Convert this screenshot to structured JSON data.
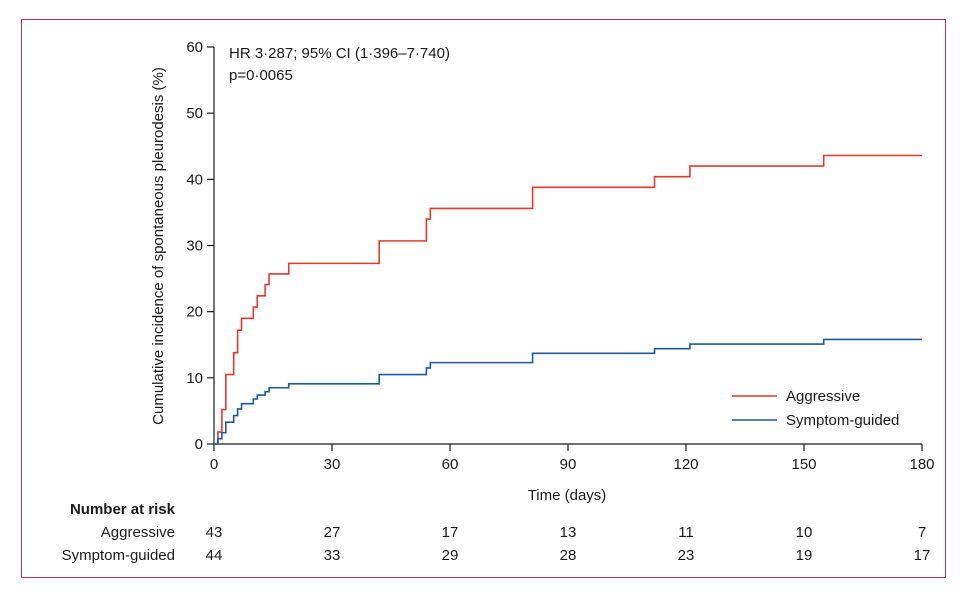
{
  "chart_data": {
    "type": "line",
    "subtype": "kaplan-meier-step",
    "ylabel": "Cumulative incidence of spontaneous pleurodesis (%)",
    "xlabel": "Time (days)",
    "xlim": [
      0,
      180
    ],
    "ylim": [
      0,
      60
    ],
    "xticks": [
      0,
      30,
      60,
      90,
      120,
      150,
      180
    ],
    "yticks": [
      0,
      10,
      20,
      30,
      40,
      50,
      60
    ],
    "grid": false,
    "legend_position": "bottom-right",
    "annotations": [
      "HR 3·287; 95% CI (1·396–7·740)",
      "p=0·0065"
    ],
    "series": [
      {
        "name": "Aggressive",
        "color": "#e03a2f",
        "steps": [
          [
            0,
            0
          ],
          [
            1,
            0
          ],
          [
            1,
            1.8
          ],
          [
            2,
            1.8
          ],
          [
            2,
            5.2
          ],
          [
            3,
            5.2
          ],
          [
            3,
            10.5
          ],
          [
            5,
            10.5
          ],
          [
            5,
            13.8
          ],
          [
            6,
            13.8
          ],
          [
            6,
            17.2
          ],
          [
            7,
            17.2
          ],
          [
            7,
            19.0
          ],
          [
            10,
            19.0
          ],
          [
            10,
            20.7
          ],
          [
            11,
            20.7
          ],
          [
            11,
            22.4
          ],
          [
            13,
            22.4
          ],
          [
            13,
            24.1
          ],
          [
            14,
            24.1
          ],
          [
            14,
            25.7
          ],
          [
            19,
            25.7
          ],
          [
            19,
            27.3
          ],
          [
            42,
            27.3
          ],
          [
            42,
            30.7
          ],
          [
            54,
            30.7
          ],
          [
            54,
            34.0
          ],
          [
            55,
            34.0
          ],
          [
            55,
            35.6
          ],
          [
            81,
            35.6
          ],
          [
            81,
            38.8
          ],
          [
            112,
            38.8
          ],
          [
            112,
            40.4
          ],
          [
            121,
            40.4
          ],
          [
            121,
            42.0
          ],
          [
            155,
            42.0
          ],
          [
            155,
            43.6
          ],
          [
            180,
            43.6
          ]
        ]
      },
      {
        "name": "Symptom-guided",
        "color": "#1c5a9c",
        "steps": [
          [
            0,
            0
          ],
          [
            1,
            0
          ],
          [
            1,
            0.8
          ],
          [
            2,
            0.8
          ],
          [
            2,
            1.7
          ],
          [
            3,
            1.7
          ],
          [
            3,
            3.3
          ],
          [
            5,
            3.3
          ],
          [
            5,
            4.3
          ],
          [
            6,
            4.3
          ],
          [
            6,
            5.3
          ],
          [
            7,
            5.3
          ],
          [
            7,
            6.1
          ],
          [
            10,
            6.1
          ],
          [
            10,
            6.8
          ],
          [
            11,
            6.8
          ],
          [
            11,
            7.4
          ],
          [
            13,
            7.4
          ],
          [
            13,
            7.9
          ],
          [
            14,
            7.9
          ],
          [
            14,
            8.5
          ],
          [
            19,
            8.5
          ],
          [
            19,
            9.1
          ],
          [
            42,
            9.1
          ],
          [
            42,
            10.5
          ],
          [
            54,
            10.5
          ],
          [
            54,
            11.5
          ],
          [
            55,
            11.5
          ],
          [
            55,
            12.3
          ],
          [
            81,
            12.3
          ],
          [
            81,
            13.7
          ],
          [
            112,
            13.7
          ],
          [
            112,
            14.4
          ],
          [
            121,
            14.4
          ],
          [
            121,
            15.1
          ],
          [
            155,
            15.1
          ],
          [
            155,
            15.8
          ],
          [
            180,
            15.8
          ]
        ]
      }
    ],
    "risk_table": {
      "title": "Number at risk",
      "timepoints": [
        0,
        30,
        60,
        90,
        120,
        150,
        180
      ],
      "rows": [
        {
          "label": "Aggressive",
          "values": [
            "43",
            "27",
            "17",
            "13",
            "11",
            "10",
            "7"
          ]
        },
        {
          "label": "Symptom-guided",
          "values": [
            "44",
            "33",
            "29",
            "28",
            "23",
            "19",
            "17"
          ]
        }
      ]
    }
  },
  "colors": {
    "frame": "#b4336a",
    "axis": "#1a1a1a"
  }
}
